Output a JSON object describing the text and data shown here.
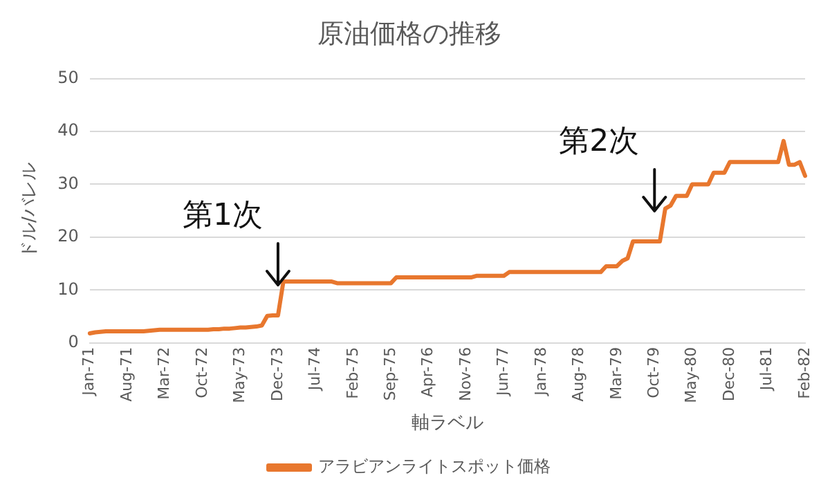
{
  "chart_data": {
    "type": "line",
    "title": "原油価格の推移",
    "xlabel": "軸ラベル",
    "ylabel": "ドル/バレル",
    "categories": [
      "Jan-71",
      null,
      null,
      null,
      null,
      null,
      null,
      "Aug-71",
      null,
      null,
      null,
      null,
      null,
      null,
      "Mar-72",
      null,
      null,
      null,
      null,
      null,
      null,
      "Oct-72",
      null,
      null,
      null,
      null,
      null,
      null,
      "May-73",
      null,
      null,
      null,
      null,
      null,
      null,
      "Dec-73",
      null,
      null,
      null,
      null,
      null,
      null,
      "Jul-74",
      null,
      null,
      null,
      null,
      null,
      null,
      "Feb-75",
      null,
      null,
      null,
      null,
      null,
      null,
      "Sep-75",
      null,
      null,
      null,
      null,
      null,
      null,
      "Apr-76",
      null,
      null,
      null,
      null,
      null,
      null,
      "Nov-76",
      null,
      null,
      null,
      null,
      null,
      null,
      "Jun-77",
      null,
      null,
      null,
      null,
      null,
      null,
      "Jan-78",
      null,
      null,
      null,
      null,
      null,
      null,
      "Aug-78",
      null,
      null,
      null,
      null,
      null,
      null,
      "Mar-79",
      null,
      null,
      null,
      null,
      null,
      null,
      "Oct-79",
      null,
      null,
      null,
      null,
      null,
      null,
      "May-80",
      null,
      null,
      null,
      null,
      null,
      null,
      "Dec-80",
      null,
      null,
      null,
      null,
      null,
      null,
      "Jul-81",
      null,
      null,
      null,
      null,
      null,
      null,
      "Feb-82"
    ],
    "series": [
      {
        "name": "アラビアンライトスポット価格",
        "color": "#e8772e",
        "values": [
          1.8,
          2.0,
          2.1,
          2.2,
          2.2,
          2.2,
          2.2,
          2.2,
          2.2,
          2.2,
          2.2,
          2.3,
          2.4,
          2.5,
          2.5,
          2.5,
          2.5,
          2.5,
          2.5,
          2.5,
          2.5,
          2.5,
          2.5,
          2.6,
          2.6,
          2.7,
          2.7,
          2.8,
          2.9,
          2.9,
          3.0,
          3.1,
          3.3,
          5.1,
          5.2,
          5.2,
          11.6,
          11.6,
          11.6,
          11.6,
          11.6,
          11.6,
          11.6,
          11.6,
          11.6,
          11.6,
          11.3,
          11.3,
          11.3,
          11.3,
          11.3,
          11.3,
          11.3,
          11.3,
          11.3,
          11.3,
          11.3,
          12.4,
          12.4,
          12.4,
          12.4,
          12.4,
          12.4,
          12.4,
          12.4,
          12.4,
          12.4,
          12.4,
          12.4,
          12.4,
          12.4,
          12.4,
          12.7,
          12.7,
          12.7,
          12.7,
          12.7,
          12.7,
          13.4,
          13.4,
          13.4,
          13.4,
          13.4,
          13.4,
          13.4,
          13.4,
          13.4,
          13.4,
          13.4,
          13.4,
          13.4,
          13.4,
          13.4,
          13.4,
          13.4,
          13.4,
          14.5,
          14.5,
          14.5,
          15.5,
          16,
          19.2,
          19.2,
          19.2,
          19.2,
          19.2,
          19.2,
          25.4,
          26,
          27.8,
          27.8,
          27.8,
          30,
          30,
          30,
          30,
          32.2,
          32.2,
          32.2,
          34.2,
          34.2,
          34.2,
          34.2,
          34.2,
          34.2,
          34.2,
          34.2,
          34.2,
          34.2,
          38.2,
          33.7,
          33.7,
          34.2,
          31.6
        ]
      }
    ],
    "ylim": [
      0,
      50
    ],
    "yticks": [
      0,
      10,
      20,
      30,
      40,
      50
    ],
    "grid": "y",
    "legend": "bottom",
    "marker": "none",
    "line_style": "solid",
    "annotations": [
      {
        "text": "第1次",
        "x": "Dec-73",
        "y": 5.2
      },
      {
        "text": "第2次",
        "x": "Oct-79",
        "y": 19.2
      }
    ]
  }
}
